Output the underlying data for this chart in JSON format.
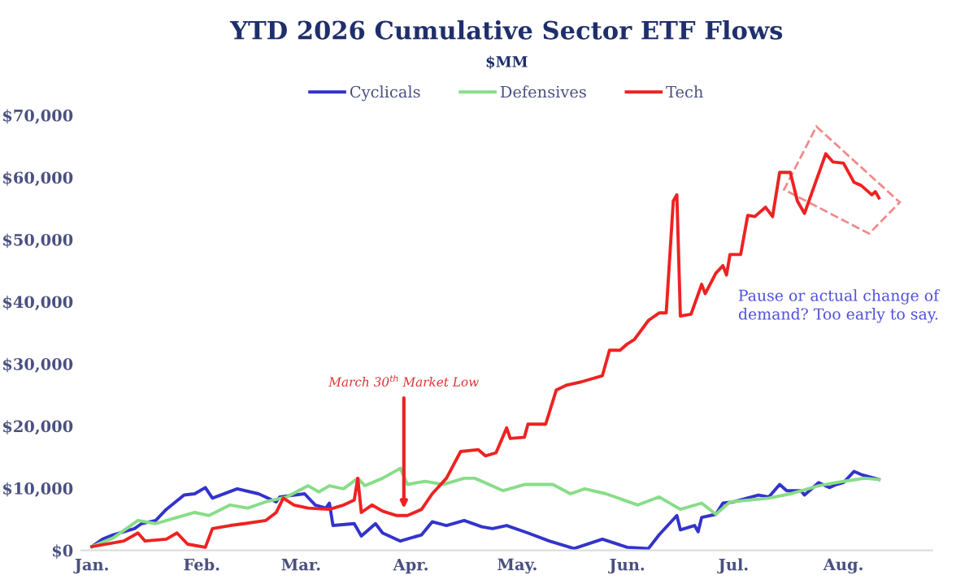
{
  "chart_data": {
    "type": "line",
    "title": "YTD 2026 Cumulative Sector ETF Flows",
    "subtitle": "$MM",
    "xlim": [
      "2025-12-29",
      "2026-08-26"
    ],
    "xticks": [
      {
        "value": "2026-01-01",
        "label": "Jan."
      },
      {
        "value": "2026-02-01",
        "label": "Feb."
      },
      {
        "value": "2026-03-01",
        "label": "Mar."
      },
      {
        "value": "2026-04-01",
        "label": "Apr."
      },
      {
        "value": "2026-05-01",
        "label": "May."
      },
      {
        "value": "2026-06-01",
        "label": "Jun."
      },
      {
        "value": "2026-07-01",
        "label": "Jul."
      },
      {
        "value": "2026-08-01",
        "label": "Aug."
      }
    ],
    "ylim": [
      0,
      70000
    ],
    "yticks": [
      {
        "value": 0,
        "label": "$0"
      },
      {
        "value": 10000,
        "label": "$10,000"
      },
      {
        "value": 20000,
        "label": "$20,000"
      },
      {
        "value": 30000,
        "label": "$30,000"
      },
      {
        "value": 40000,
        "label": "$40,000"
      },
      {
        "value": 50000,
        "label": "$50,000"
      },
      {
        "value": 60000,
        "label": "$60,000"
      },
      {
        "value": 70000,
        "label": "$70,000"
      }
    ],
    "grid": false,
    "legend": "top",
    "line_style": "solid",
    "marker": "none",
    "annotations": [
      {
        "text": "March 30$^{th}$ Market Low",
        "x": "2026-03-30",
        "y": 6000
      },
      "Pause or actual change of demand? Too early to say."
    ],
    "series": [
      {
        "name": "Cyclicals",
        "color": "#3333cc",
        "x": [
          "2026-01-01",
          "2026-01-04",
          "2026-01-07",
          "2026-01-13",
          "2026-01-15",
          "2026-01-19",
          "2026-01-22",
          "2026-01-27",
          "2026-01-30",
          "2026-02-02",
          "2026-02-04",
          "2026-02-11",
          "2026-02-17",
          "2026-02-22",
          "2026-02-23",
          "2026-03-02",
          "2026-03-05",
          "2026-03-08",
          "2026-03-09",
          "2026-03-10",
          "2026-03-16",
          "2026-03-18",
          "2026-03-22",
          "2026-03-24",
          "2026-03-29",
          "2026-04-04",
          "2026-04-07",
          "2026-04-11",
          "2026-04-16",
          "2026-04-21",
          "2026-04-24",
          "2026-04-28",
          "2026-05-04",
          "2026-05-10",
          "2026-05-17",
          "2026-05-25",
          "2026-06-01",
          "2026-06-07",
          "2026-06-10",
          "2026-06-15",
          "2026-06-16",
          "2026-06-20",
          "2026-06-21",
          "2026-06-22",
          "2026-06-26",
          "2026-06-28",
          "2026-07-01",
          "2026-07-08",
          "2026-07-11",
          "2026-07-14",
          "2026-07-16",
          "2026-07-20",
          "2026-07-21",
          "2026-07-25",
          "2026-07-28",
          "2026-07-30",
          "2026-08-01",
          "2026-08-04",
          "2026-08-06",
          "2026-08-11"
        ],
        "values": [
          600,
          1800,
          2500,
          3500,
          4300,
          4800,
          6600,
          8900,
          9100,
          10100,
          8400,
          9900,
          9100,
          7800,
          8600,
          9100,
          7300,
          6800,
          7600,
          4000,
          4300,
          2300,
          4300,
          2800,
          1500,
          2500,
          4600,
          4000,
          4800,
          3800,
          3500,
          4000,
          2800,
          1500,
          300,
          1800,
          500,
          300,
          2500,
          5600,
          3300,
          4000,
          3000,
          5300,
          5800,
          7600,
          7800,
          8900,
          8600,
          10600,
          9600,
          9600,
          8900,
          10900,
          10100,
          10600,
          10900,
          12700,
          12200,
          11400
        ]
      },
      {
        "name": "Defensives",
        "color": "#88dd88",
        "x": [
          "2026-01-01",
          "2026-01-07",
          "2026-01-14",
          "2026-01-19",
          "2026-01-25",
          "2026-01-30",
          "2026-02-03",
          "2026-02-09",
          "2026-02-14",
          "2026-02-19",
          "2026-02-25",
          "2026-03-03",
          "2026-03-06",
          "2026-03-09",
          "2026-03-13",
          "2026-03-17",
          "2026-03-19",
          "2026-03-24",
          "2026-03-29",
          "2026-03-31",
          "2026-04-05",
          "2026-04-10",
          "2026-04-16",
          "2026-04-19",
          "2026-04-23",
          "2026-04-27",
          "2026-05-03",
          "2026-05-11",
          "2026-05-16",
          "2026-05-20",
          "2026-05-26",
          "2026-06-04",
          "2026-06-10",
          "2026-06-16",
          "2026-06-22",
          "2026-06-26",
          "2026-06-30",
          "2026-07-11",
          "2026-07-17",
          "2026-07-25",
          "2026-08-01",
          "2026-08-07",
          "2026-08-11"
        ],
        "values": [
          600,
          2000,
          4800,
          4300,
          5300,
          6100,
          5600,
          7300,
          6800,
          7800,
          8600,
          10400,
          9400,
          10400,
          9900,
          11600,
          10400,
          11600,
          13200,
          10600,
          11100,
          10600,
          11600,
          11600,
          10600,
          9600,
          10600,
          10600,
          9100,
          9900,
          9100,
          7300,
          8600,
          6600,
          7600,
          5800,
          7800,
          8400,
          9100,
          10400,
          11100,
          11600,
          11400
        ]
      },
      {
        "name": "Tech",
        "color": "#ee2222",
        "x": [
          "2026-01-01",
          "2026-01-10",
          "2026-01-14",
          "2026-01-16",
          "2026-01-22",
          "2026-01-25",
          "2026-01-28",
          "2026-02-02",
          "2026-02-04",
          "2026-02-09",
          "2026-02-13",
          "2026-02-19",
          "2026-02-22",
          "2026-02-24",
          "2026-02-27",
          "2026-03-03",
          "2026-03-09",
          "2026-03-13",
          "2026-03-16",
          "2026-03-17",
          "2026-03-18",
          "2026-03-21",
          "2026-03-24",
          "2026-03-28",
          "2026-03-31",
          "2026-04-04",
          "2026-04-07",
          "2026-04-11",
          "2026-04-15",
          "2026-04-20",
          "2026-04-22",
          "2026-04-25",
          "2026-04-28",
          "2026-04-29",
          "2026-05-03",
          "2026-05-04",
          "2026-05-09",
          "2026-05-12",
          "2026-05-15",
          "2026-05-19",
          "2026-05-25",
          "2026-05-27",
          "2026-05-30",
          "2026-06-01",
          "2026-06-03",
          "2026-06-07",
          "2026-06-10",
          "2026-06-12",
          "2026-06-14",
          "2026-06-15",
          "2026-06-16",
          "2026-06-19",
          "2026-06-22",
          "2026-06-23",
          "2026-06-26",
          "2026-06-28",
          "2026-06-29",
          "2026-06-30",
          "2026-07-03",
          "2026-07-05",
          "2026-07-07",
          "2026-07-10",
          "2026-07-12",
          "2026-07-14",
          "2026-07-17",
          "2026-07-19",
          "2026-07-21",
          "2026-07-27",
          "2026-07-29",
          "2026-08-01",
          "2026-08-04",
          "2026-08-06",
          "2026-08-09",
          "2026-08-10",
          "2026-08-11"
        ],
        "values": [
          600,
          1500,
          2800,
          1500,
          1800,
          2800,
          1000,
          500,
          3500,
          4000,
          4300,
          4800,
          6100,
          8400,
          7300,
          6800,
          6600,
          7300,
          8100,
          11600,
          6100,
          7300,
          6300,
          5600,
          5600,
          6600,
          9100,
          11600,
          15900,
          16200,
          15200,
          15700,
          19700,
          18000,
          18200,
          20300,
          20300,
          25800,
          26600,
          27100,
          28100,
          32200,
          32200,
          33200,
          33900,
          37000,
          38200,
          38200,
          56200,
          57200,
          37700,
          38000,
          42800,
          41300,
          44600,
          45800,
          44300,
          47600,
          47600,
          53900,
          53700,
          55200,
          53700,
          60800,
          60800,
          56200,
          54200,
          63800,
          62500,
          62300,
          59200,
          58700,
          57200,
          57700,
          56700
        ]
      }
    ]
  }
}
